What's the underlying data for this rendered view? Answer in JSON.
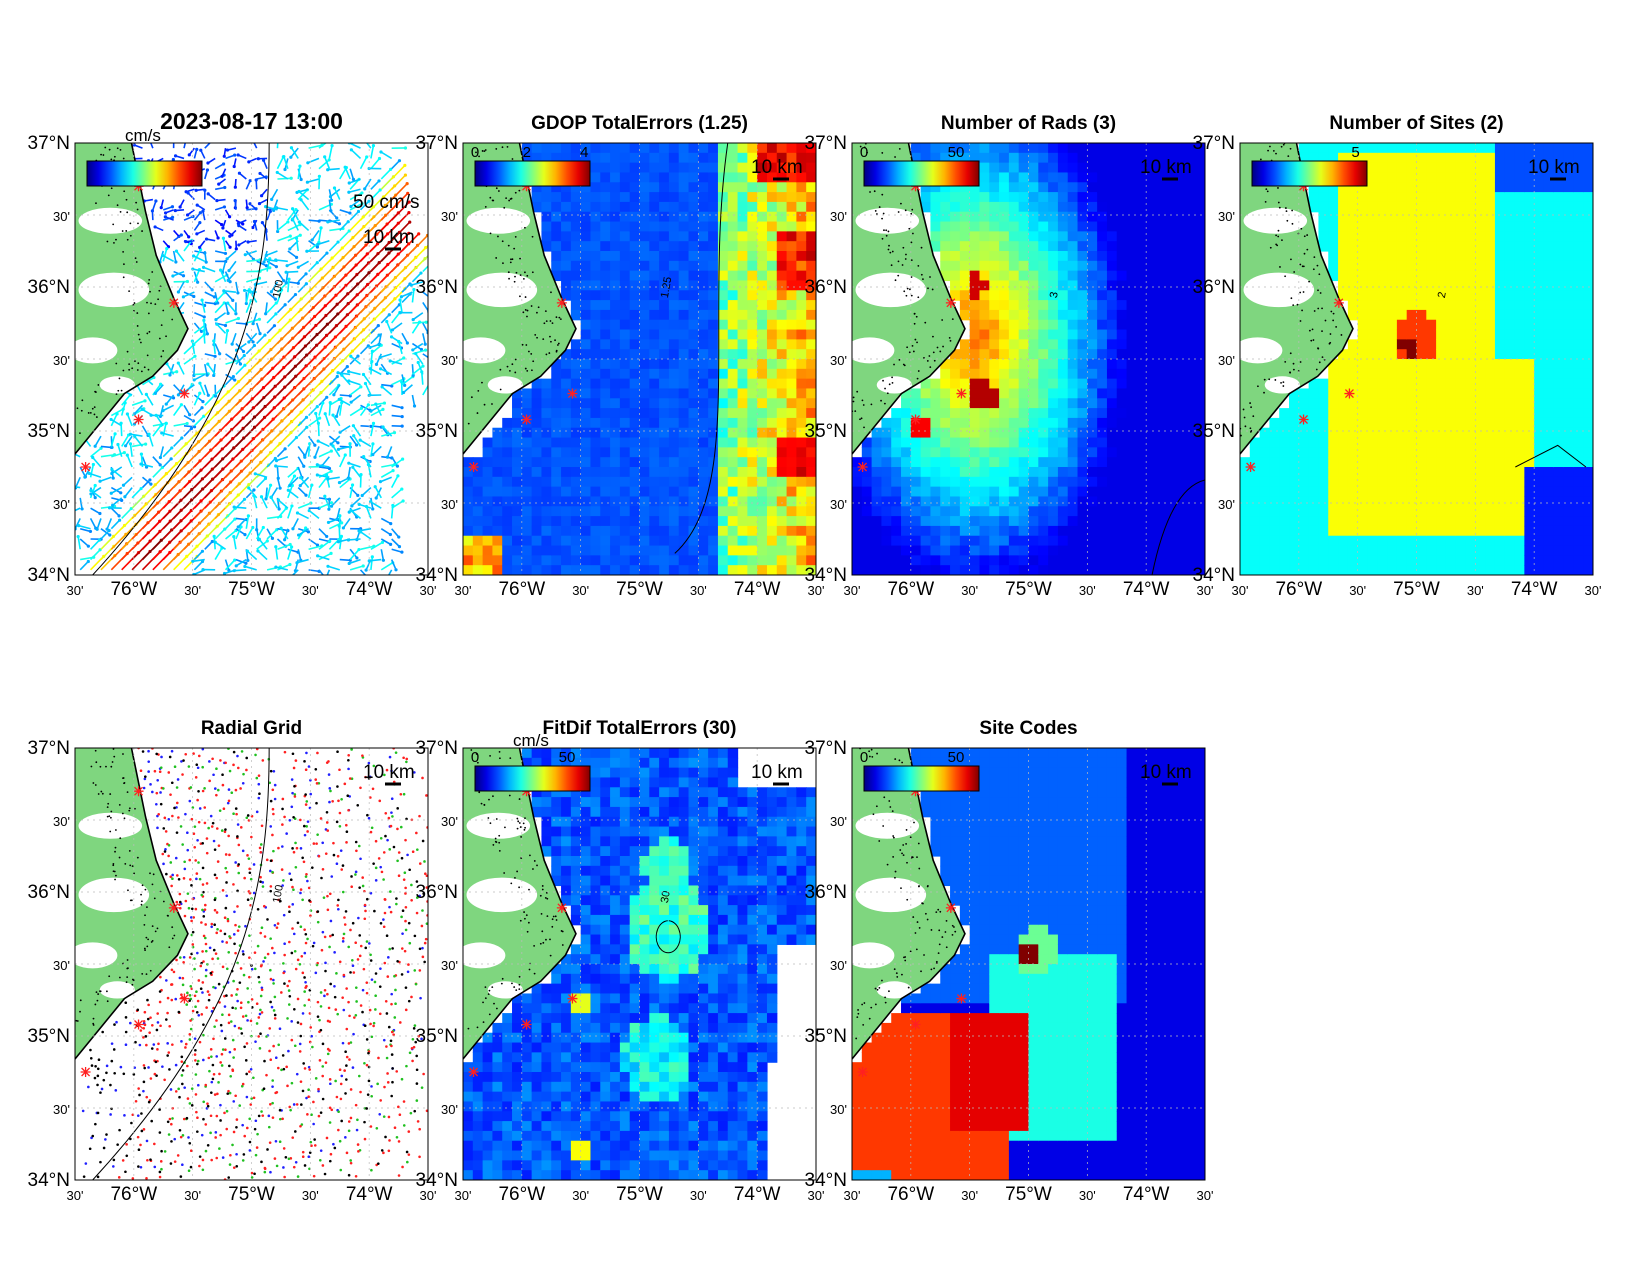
{
  "figure": {
    "axes": {
      "lat_labels": [
        "37°N",
        "30'",
        "36°N",
        "30'",
        "35°N",
        "30'",
        "34°N"
      ],
      "lon_labels": [
        "30'",
        "76°W",
        "30'",
        "75°W",
        "30'",
        "74°W",
        "30'"
      ]
    },
    "scale_bar_label": "10 km",
    "panels": [
      {
        "id": "currents",
        "title": "2023-08-17 13:00",
        "colorbar": {
          "unit": "cm/s",
          "ticks": [],
          "colormap": "jet"
        },
        "extra_label": "50 cm/s",
        "contour_label": "100",
        "field": "vectors"
      },
      {
        "id": "gdop",
        "title": "GDOP TotalErrors (1.25)",
        "colorbar": {
          "unit": "",
          "ticks": [
            "0",
            "2",
            "4"
          ],
          "colormap": "jet"
        },
        "contour_label": "1.25",
        "field": "gdop"
      },
      {
        "id": "nrads",
        "title": "Number of Rads (3)",
        "colorbar": {
          "unit": "",
          "ticks": [
            "0",
            "50"
          ],
          "colormap": "jet"
        },
        "contour_label": "3",
        "field": "nrads"
      },
      {
        "id": "nsites",
        "title": "Number of Sites (2)",
        "colorbar": {
          "unit": "",
          "ticks": [
            "5"
          ],
          "colormap": "jet"
        },
        "contour_label": "2",
        "field": "nsites"
      },
      {
        "id": "radialgrid",
        "title": "Radial Grid",
        "contour_label": "100",
        "field": "dots"
      },
      {
        "id": "fitdif",
        "title": "FitDif TotalErrors (30)",
        "colorbar": {
          "unit": "cm/s",
          "ticks": [
            "0",
            "50"
          ],
          "colormap": "jet"
        },
        "contour_label": "30",
        "field": "fitdif"
      },
      {
        "id": "sitecodes",
        "title": "Site Codes",
        "colorbar": {
          "unit": "",
          "ticks": [
            "0",
            "50"
          ],
          "colormap": "jet"
        },
        "field": "sitecodes"
      }
    ],
    "colors": {
      "land": "#7fd67f",
      "coast": "#000000",
      "site_marker": "#ff2020",
      "grid": "#bbbbbb"
    }
  }
}
